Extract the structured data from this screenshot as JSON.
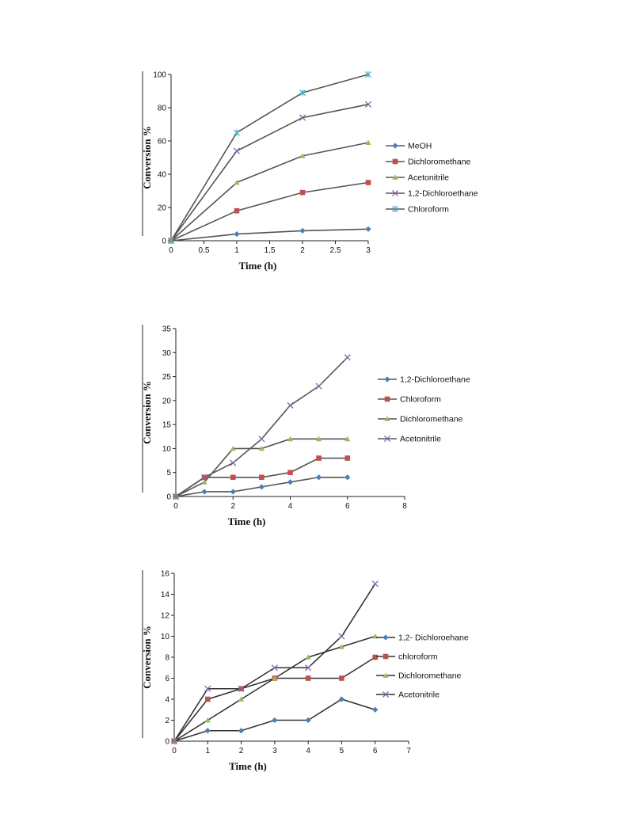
{
  "chart_data": [
    {
      "type": "line",
      "xlabel": "Time (h)",
      "ylabel": "Conversion %",
      "xlim": [
        0,
        3
      ],
      "ylim": [
        0,
        100
      ],
      "xticks": [
        "0",
        "0.5",
        "1",
        "1.5",
        "2",
        "2.5",
        "3"
      ],
      "yticks": [
        "0",
        "20",
        "40",
        "60",
        "80",
        "100"
      ],
      "legend_position": "right",
      "x": [
        0,
        1,
        2,
        3
      ],
      "series": [
        {
          "name": "MeOH",
          "values": [
            0,
            4,
            6,
            7
          ],
          "color": "#4a7ebb",
          "marker": "diamond"
        },
        {
          "name": "Dichloromethane",
          "values": [
            0,
            18,
            29,
            35
          ],
          "color": "#c0504d",
          "marker": "square"
        },
        {
          "name": "Acetonitrile",
          "values": [
            0,
            35,
            51,
            59
          ],
          "color": "#9bbb59",
          "marker": "triangle"
        },
        {
          "name": "1,2-Dichloroethane",
          "values": [
            0,
            54,
            74,
            82
          ],
          "color": "#8064a2",
          "marker": "x"
        },
        {
          "name": "Chloroform",
          "values": [
            0,
            65,
            89,
            100
          ],
          "color": "#4bacc6",
          "marker": "star"
        }
      ]
    },
    {
      "type": "line",
      "xlabel": "Time (h)",
      "ylabel": "Conversion %",
      "xlim": [
        0,
        8
      ],
      "ylim": [
        0,
        35
      ],
      "xticks": [
        "0",
        "2",
        "4",
        "6",
        "8"
      ],
      "yticks": [
        "0",
        "5",
        "10",
        "15",
        "20",
        "25",
        "30",
        "35"
      ],
      "legend_position": "right",
      "x": [
        0,
        1,
        2,
        3,
        4,
        5,
        6
      ],
      "series": [
        {
          "name": "1,2-Dichloroethane",
          "values": [
            0,
            1,
            1,
            2,
            3,
            4,
            4
          ],
          "color": "#4a7ebb",
          "marker": "diamond"
        },
        {
          "name": "Chloroform",
          "values": [
            0,
            4,
            4,
            4,
            5,
            8,
            8
          ],
          "color": "#c0504d",
          "marker": "square"
        },
        {
          "name": "Dichloromethane",
          "values": [
            0,
            3,
            10,
            10,
            12,
            12,
            12
          ],
          "color": "#9bbb59",
          "marker": "triangle"
        },
        {
          "name": "Acetonitrile",
          "values": [
            0,
            4,
            7,
            12,
            19,
            23,
            29
          ],
          "color": "#8064a2",
          "marker": "x"
        }
      ]
    },
    {
      "type": "line",
      "xlabel": "Time (h)",
      "ylabel": "Conversion %",
      "xlim": [
        0,
        7
      ],
      "ylim": [
        0,
        16
      ],
      "xticks": [
        "0",
        "1",
        "2",
        "3",
        "4",
        "5",
        "6",
        "7"
      ],
      "yticks": [
        "0",
        "2",
        "4",
        "6",
        "8",
        "10",
        "12",
        "14",
        "16"
      ],
      "legend_position": "right",
      "x": [
        0,
        1,
        2,
        3,
        4,
        5,
        6
      ],
      "series": [
        {
          "name": "1,2- Dichloroehane",
          "values": [
            0,
            1,
            1,
            2,
            2,
            4,
            3
          ],
          "color": "#4a7ebb",
          "marker": "diamond"
        },
        {
          "name": "chloroform",
          "values": [
            0,
            4,
            5,
            6,
            6,
            6,
            8
          ],
          "color": "#c0504d",
          "marker": "square"
        },
        {
          "name": "Dichloromethane",
          "values": [
            0,
            2,
            4,
            6,
            8,
            9,
            10
          ],
          "color": "#9bbb59",
          "marker": "triangle"
        },
        {
          "name": "Acetonitrile",
          "values": [
            0,
            5,
            5,
            7,
            7,
            10,
            15
          ],
          "color": "#8064a2",
          "marker": "x"
        }
      ]
    }
  ]
}
